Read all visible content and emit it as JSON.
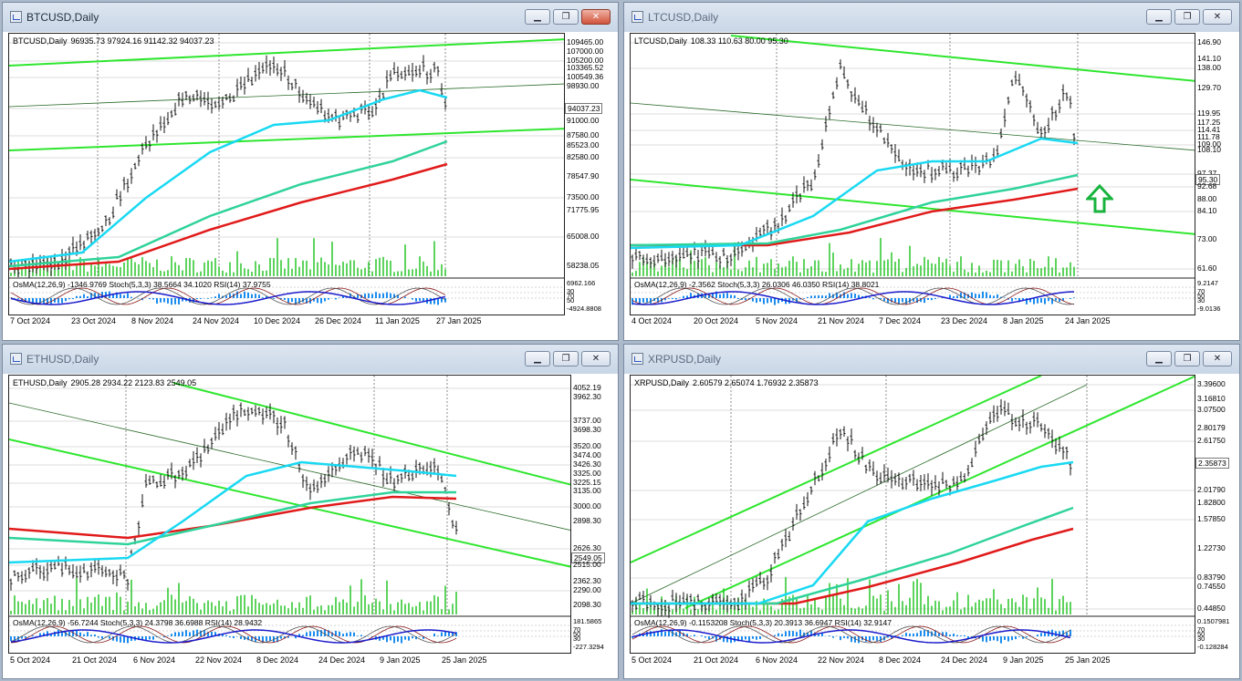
{
  "colors": {
    "ma_fast": "#19d9f2",
    "ma_mid": "#2fd39a",
    "ma_slow": "#e11a1a",
    "channel": "#2ee62e",
    "bars": "#111111",
    "volume": "#19c219",
    "osma": "#1a8cf0",
    "signal": "#1b1bcc",
    "stoch": "#8b1a1a"
  },
  "icons": {
    "chart_window": "chart-window-icon",
    "minimize": "minimize-icon",
    "restore": "restore-icon",
    "close": "close-icon",
    "arrow": "green-up-arrow-icon"
  },
  "window_buttons": {
    "minimize": "▁",
    "restore": "❐",
    "close": "✕"
  },
  "charts": [
    {
      "title": "BTCUSD,Daily",
      "info": {
        "symbol": "BTCUSD,Daily",
        "ohlc": "96935.73 97924.16 91142.32 94037.23"
      },
      "osc": "OsMA(12,26,9) -1346.9769   Stoch(5,3,3) 38.5664 34.1020   RSI(14) 37.9755",
      "prices": [
        "109465.00",
        "107000.00",
        "105200.00",
        "103365.52",
        "100549.36",
        "98930.00",
        "94037.23",
        "91000.00",
        "87580.00",
        "85523.00",
        "82580.00",
        "78547.90",
        "73500.00",
        "71775.95",
        "65008.00",
        "58238.05"
      ],
      "osc_scale": [
        "6962.166",
        "30",
        "70",
        "50",
        "-4924.8808"
      ],
      "dates": [
        "7 Oct 2024",
        "23 Oct 2024",
        "8 Nov 2024",
        "24 Nov 2024",
        "10 Dec 2024",
        "26 Dec 2024",
        "11 Jan 2025",
        "27 Jan 2025"
      ]
    },
    {
      "title": "LTCUSD,Daily",
      "info": {
        "symbol": "LTCUSD,Daily",
        "ohlc": "108.33 110.63 80.00 95.30"
      },
      "osc": "OsMA(12,26,9) -2.3562   Stoch(5,3,3) 26.0306 46.0350   RSI(14) 38.8021",
      "prices": [
        "146.90",
        "141.10",
        "138.00",
        "129.70",
        "119.95",
        "117.25",
        "114.41",
        "111.78",
        "109.00",
        "108.10",
        "97.37",
        "95.30",
        "92.68",
        "88.00",
        "84.10",
        "73.00",
        "61.60"
      ],
      "osc_scale": [
        "9.2147",
        "70",
        "50",
        "30",
        "-9.0136"
      ],
      "dates": [
        "4 Oct 2024",
        "20 Oct 2024",
        "5 Nov 2024",
        "21 Nov 2024",
        "7 Dec 2024",
        "23 Dec 2024",
        "8 Jan 2025",
        "24 Jan 2025"
      ]
    },
    {
      "title": "ETHUSD,Daily",
      "info": {
        "symbol": "ETHUSD,Daily",
        "ohlc": "2905.28 2934.22 2123.83 2549.05"
      },
      "osc": "OsMA(12,26,9) -56.7244   Stoch(5,3,3) 24.3798 36.6988   RSI(14) 28.9432",
      "prices": [
        "4052.19",
        "3962.30",
        "3737.00",
        "3698.30",
        "3520.00",
        "3474.00",
        "3426.30",
        "3325.00",
        "3225.15",
        "3135.00",
        "3000.00",
        "2898.30",
        "2626.30",
        "2549.05",
        "2515.00",
        "2362.30",
        "2290.00",
        "2098.30"
      ],
      "osc_scale": [
        "181.5865",
        "70",
        "50",
        "30",
        "-227.3294"
      ],
      "dates": [
        "5 Oct 2024",
        "21 Oct 2024",
        "6 Nov 2024",
        "22 Nov 2024",
        "8 Dec 2024",
        "24 Dec 2024",
        "9 Jan 2025",
        "25 Jan 2025"
      ]
    },
    {
      "title": "XRPUSD,Daily",
      "info": {
        "symbol": "XRPUSD,Daily",
        "ohlc": "2.60579 2.65074 1.76932 2.35873"
      },
      "osc": "OsMA(12,26,9) -0.1153208   Stoch(5,3,3) 20.3913 36.6947   RSI(14) 32.9147",
      "prices": [
        "3.39600",
        "3.16810",
        "3.07500",
        "2.80179",
        "2.61750",
        "2.35873",
        "2.01790",
        "1.82800",
        "1.57850",
        "1.22730",
        "0.83790",
        "0.74550",
        "0.44850"
      ],
      "osc_scale": [
        "0.1507981",
        "70",
        "50",
        "30",
        "-0.128284"
      ],
      "dates": [
        "5 Oct 2024",
        "21 Oct 2024",
        "6 Nov 2024",
        "22 Nov 2024",
        "8 Dec 2024",
        "24 Dec 2024",
        "9 Jan 2025",
        "25 Jan 2025"
      ]
    }
  ]
}
